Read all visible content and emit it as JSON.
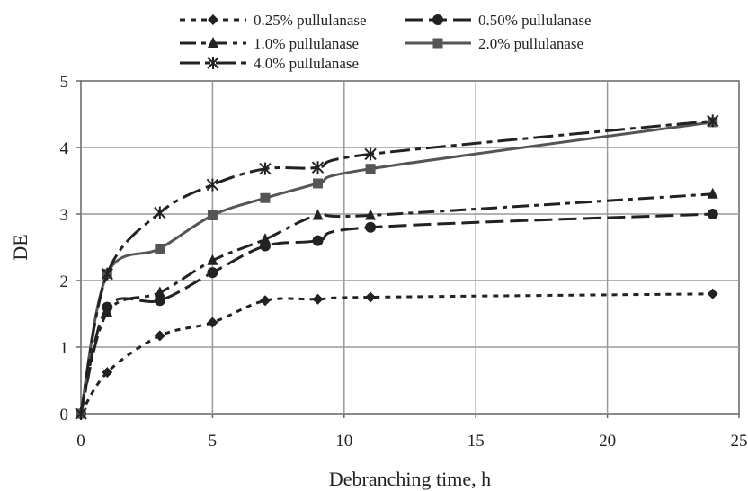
{
  "chart_data": {
    "type": "line",
    "xlabel": "Debranching time, h",
    "ylabel": "DE",
    "xlim": [
      0,
      25
    ],
    "ylim": [
      0,
      5
    ],
    "xticks": [
      "0",
      "5",
      "10",
      "15",
      "20",
      "25"
    ],
    "yticks": [
      "0",
      "1",
      "2",
      "3",
      "4",
      "5"
    ],
    "grid": true,
    "legend_position": "top",
    "series": [
      {
        "name": "0.25% pullulanase",
        "marker": "diamond",
        "dash": "short-dash",
        "color": "#222222",
        "x": [
          0,
          1,
          3,
          5,
          7,
          9,
          11,
          24
        ],
        "y": [
          0,
          0.62,
          1.17,
          1.37,
          1.7,
          1.72,
          1.75,
          1.8
        ]
      },
      {
        "name": "0.50% pullulanase",
        "marker": "circle",
        "dash": "long-dash",
        "color": "#222222",
        "x": [
          0,
          1,
          3,
          5,
          7,
          9,
          11,
          24
        ],
        "y": [
          0,
          1.6,
          1.7,
          2.12,
          2.52,
          2.6,
          2.8,
          3.0
        ]
      },
      {
        "name": "1.0% pullulanase",
        "marker": "triangle",
        "dash": "dash-dot",
        "color": "#222222",
        "x": [
          0,
          1,
          3,
          5,
          7,
          9,
          11,
          24
        ],
        "y": [
          0,
          1.52,
          1.82,
          2.3,
          2.62,
          2.98,
          2.98,
          3.3
        ]
      },
      {
        "name": "2.0% pullulanase",
        "marker": "square",
        "dash": "solid",
        "color": "#555555",
        "x": [
          0,
          1,
          3,
          5,
          7,
          9,
          11,
          24
        ],
        "y": [
          0,
          2.1,
          2.48,
          2.98,
          3.24,
          3.46,
          3.68,
          4.38
        ]
      },
      {
        "name": "4.0% pullulanase",
        "marker": "star",
        "dash": "long-dash-dot",
        "color": "#222222",
        "x": [
          0,
          1,
          3,
          5,
          7,
          9,
          11,
          24
        ],
        "y": [
          0,
          2.1,
          3.02,
          3.44,
          3.68,
          3.7,
          3.9,
          4.4
        ]
      }
    ]
  }
}
